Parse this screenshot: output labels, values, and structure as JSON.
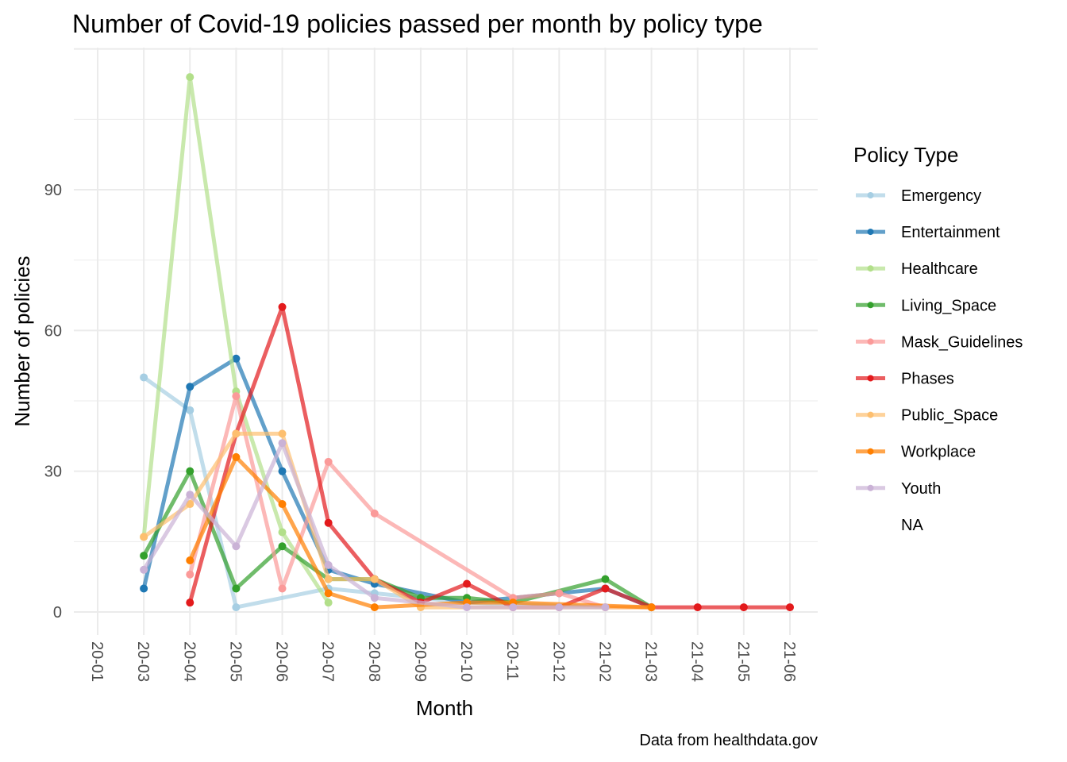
{
  "chart_data": {
    "type": "line",
    "title": "Number of Covid-19 policies passed per month by policy type",
    "xlabel": "Month",
    "ylabel": "Number of policies",
    "caption": "Data from healthdata.gov",
    "categories": [
      "20-01",
      "20-03",
      "20-04",
      "20-05",
      "20-06",
      "20-07",
      "20-08",
      "20-09",
      "20-10",
      "20-11",
      "20-12",
      "21-02",
      "21-03",
      "21-04",
      "21-05",
      "21-06"
    ],
    "y_ticks": [
      0,
      30,
      60,
      90
    ],
    "ylim": [
      -5,
      120
    ],
    "grid": true,
    "legend": {
      "title": "Policy Type",
      "placement": "right"
    },
    "series": [
      {
        "name": "Emergency",
        "color": "#a6cee3",
        "points": {
          "20-03": 50,
          "20-04": 43,
          "20-05": 1,
          "20-07": 5,
          "20-08": 4,
          "20-10": 2,
          "21-02": 1
        }
      },
      {
        "name": "Entertainment",
        "color": "#1f78b4",
        "points": {
          "20-03": 5,
          "20-04": 48,
          "20-05": 54,
          "20-06": 30,
          "20-07": 9,
          "20-08": 6,
          "20-10": 2,
          "20-12": 4,
          "21-02": 5,
          "21-03": 1
        }
      },
      {
        "name": "Healthcare",
        "color": "#b2df8a",
        "points": {
          "20-03": 16,
          "20-04": 114,
          "20-05": 47,
          "20-06": 17,
          "20-07": 2
        }
      },
      {
        "name": "Living_Space",
        "color": "#33a02c",
        "points": {
          "20-03": 12,
          "20-04": 30,
          "20-05": 5,
          "20-06": 14,
          "20-07": 7,
          "20-08": 7,
          "20-09": 3,
          "20-10": 3,
          "20-11": 2,
          "21-02": 7,
          "21-03": 1
        }
      },
      {
        "name": "Mask_Guidelines",
        "color": "#fb9a99",
        "points": {
          "20-04": 8,
          "20-05": 46,
          "20-06": 5,
          "20-07": 32,
          "20-08": 21,
          "20-11": 3,
          "20-12": 4,
          "21-02": 1,
          "21-03": 1
        }
      },
      {
        "name": "Phases",
        "color": "#e31a1c",
        "points": {
          "20-04": 2,
          "20-05": 38,
          "20-06": 65,
          "20-07": 19,
          "20-08": 7,
          "20-09": 2,
          "20-10": 6,
          "20-11": 1,
          "20-12": 1,
          "21-02": 5,
          "21-03": 1,
          "21-04": 1,
          "21-05": 1,
          "21-06": 1
        }
      },
      {
        "name": "Public_Space",
        "color": "#fdbf6f",
        "points": {
          "20-03": 16,
          "20-04": 23,
          "20-05": 38,
          "20-06": 38,
          "20-07": 7,
          "20-08": 7,
          "20-09": 1,
          "21-02": 1,
          "21-03": 1
        }
      },
      {
        "name": "Workplace",
        "color": "#ff7f00",
        "points": {
          "20-04": 11,
          "20-05": 33,
          "20-06": 23,
          "20-07": 4,
          "20-08": 1,
          "20-10": 2,
          "20-11": 2,
          "21-03": 1
        }
      },
      {
        "name": "Youth",
        "color": "#cab2d6",
        "points": {
          "20-03": 9,
          "20-04": 25,
          "20-05": 14,
          "20-06": 36,
          "20-07": 10,
          "20-08": 3,
          "20-10": 1,
          "20-11": 1,
          "20-12": 1,
          "21-02": 1
        }
      },
      {
        "name": "NA",
        "color": "",
        "points": {}
      }
    ]
  }
}
